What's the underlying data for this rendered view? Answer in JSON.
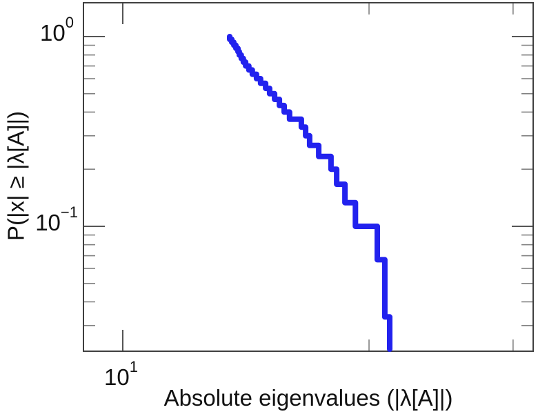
{
  "figure": {
    "background": "#ffffff",
    "plot_border_color": "#3f3f3f"
  },
  "axes": {
    "xlabel": "Absolute eigenvalues (|λ[A]|)",
    "ylabel": "P(|x| ≥ |λ[A]|)",
    "x_tick_labels": [
      {
        "base": "10",
        "exp": "1"
      }
    ],
    "y_tick_labels": [
      {
        "base": "10",
        "exp": "0"
      },
      {
        "base": "10",
        "exp": "−1"
      }
    ]
  },
  "chart_data": {
    "type": "line",
    "subtype": "empirical-ccdf-staircase",
    "title": "",
    "xlabel": "Absolute eigenvalues (|λ[A]|)",
    "ylabel": "P(|x| ≥ |λ[A]|)",
    "x_scale": "log",
    "y_scale": "log",
    "xlim": [
      9,
      31.6
    ],
    "ylim": [
      0.02,
      1.5
    ],
    "x_major_ticks": [
      10
    ],
    "x_minor_ticks": [
      20,
      30
    ],
    "y_major_ticks": [
      1,
      0.1
    ],
    "y_minor_ticks": [
      0.9,
      0.8,
      0.7,
      0.6,
      0.5,
      0.4,
      0.3,
      0.2,
      0.09,
      0.08,
      0.07,
      0.06,
      0.05,
      0.04,
      0.03
    ],
    "grid": false,
    "legend": null,
    "n_points": 30,
    "series": [
      {
        "name": "absolute-eigenvalue-ccdf",
        "color": "#2222ee",
        "line_width": 8,
        "style": "steps-descending",
        "x": [
          13.51,
          13.59,
          13.67,
          13.75,
          13.83,
          13.88,
          13.96,
          14.04,
          14.13,
          14.26,
          14.4,
          14.57,
          14.74,
          14.95,
          15.12,
          15.33,
          15.54,
          15.75,
          15.99,
          16.53,
          16.73,
          16.92,
          17.36,
          17.97,
          18.26,
          18.69,
          19.25,
          20.47,
          20.91,
          21.2
        ],
        "y": [
          1.0,
          0.9667,
          0.9333,
          0.9,
          0.8667,
          0.8333,
          0.8,
          0.7667,
          0.7333,
          0.7,
          0.6667,
          0.6333,
          0.6,
          0.5667,
          0.5333,
          0.5,
          0.4667,
          0.4333,
          0.4,
          0.3667,
          0.3333,
          0.3,
          0.2667,
          0.2333,
          0.2,
          0.1667,
          0.1333,
          0.1,
          0.0667,
          0.0333
        ]
      }
    ]
  }
}
